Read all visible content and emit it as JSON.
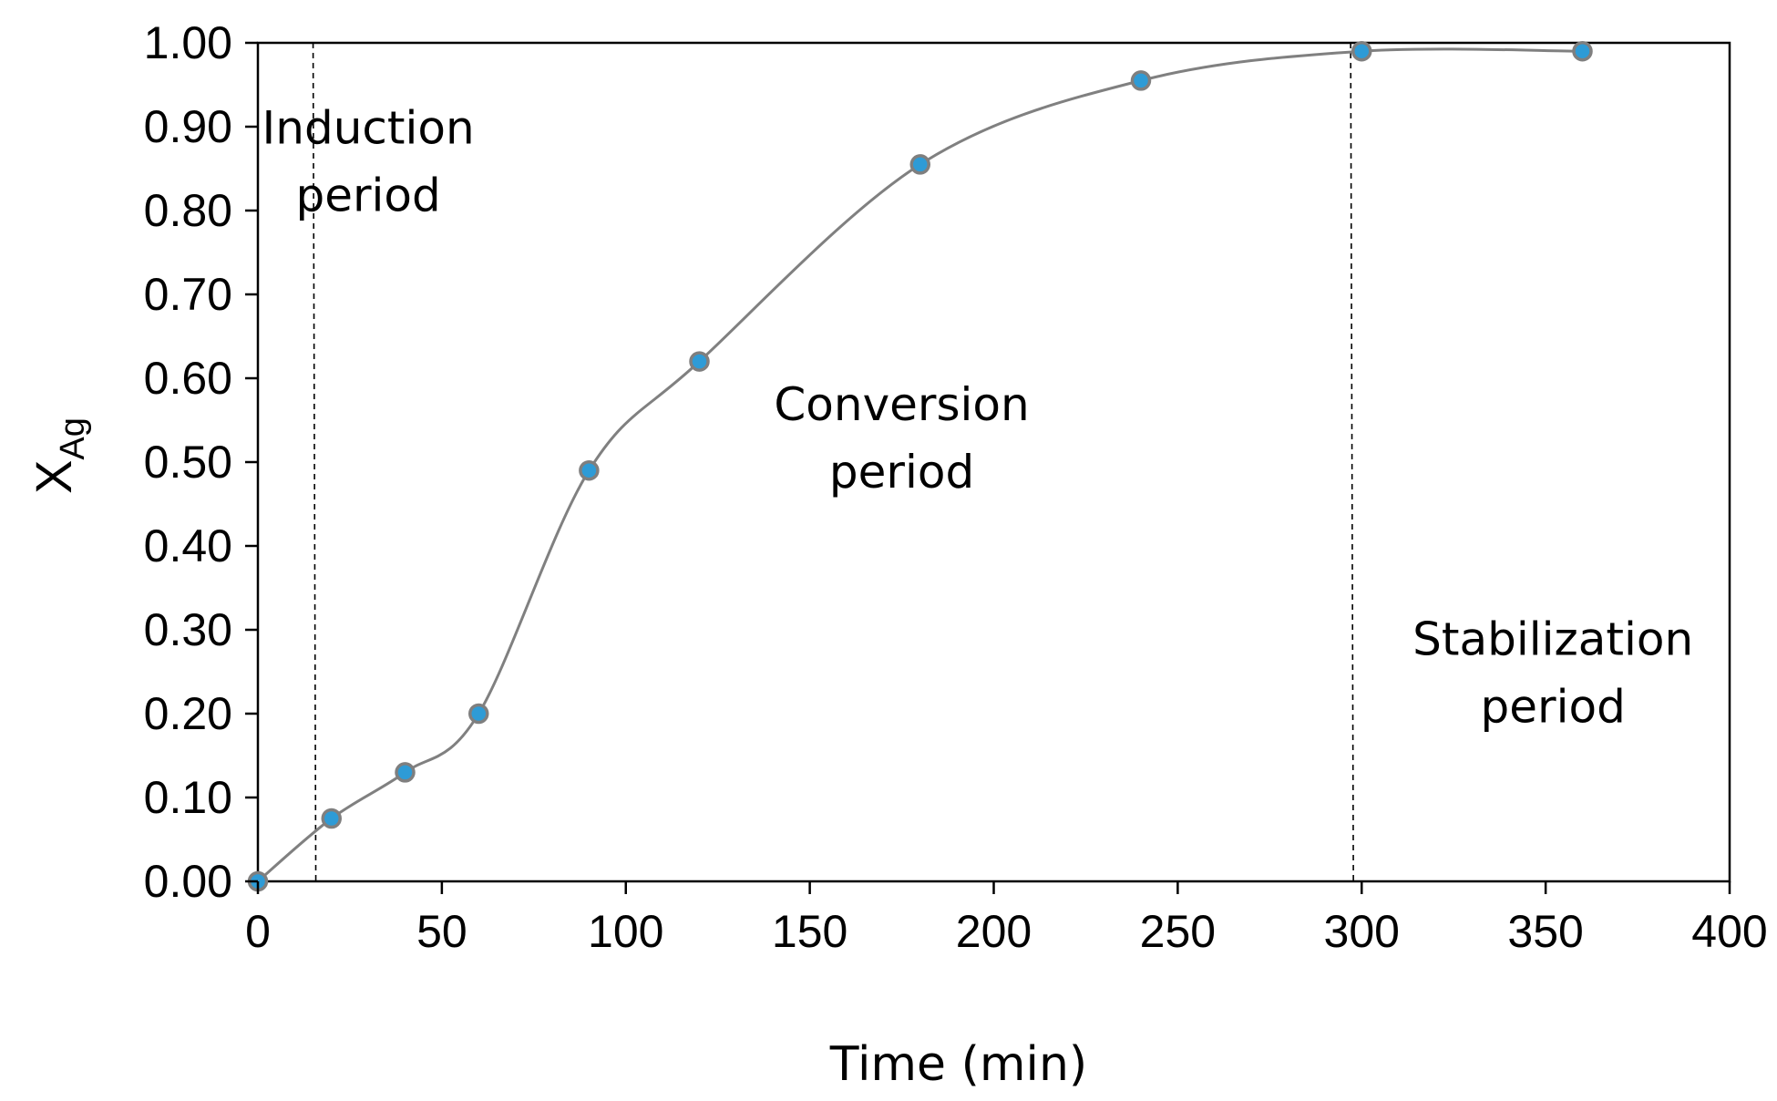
{
  "chart_data": {
    "type": "scatter",
    "title": "",
    "xlabel": "Time (min)",
    "ylabel": {
      "main": "X",
      "sub": "Ag"
    },
    "xlim": [
      0,
      400
    ],
    "ylim": [
      0,
      1.0
    ],
    "xticks": [
      "0",
      "50",
      "100",
      "150",
      "200",
      "250",
      "300",
      "350",
      "400"
    ],
    "yticks": [
      "0.00",
      "0.10",
      "0.20",
      "0.30",
      "0.40",
      "0.50",
      "0.60",
      "0.70",
      "0.80",
      "0.90",
      "1.00"
    ],
    "grid": false,
    "smooth_line": true,
    "series": [
      {
        "name": "XAg",
        "x": [
          0,
          20,
          40,
          60,
          90,
          120,
          180,
          240,
          300,
          360
        ],
        "y": [
          0.0,
          0.075,
          0.13,
          0.2,
          0.49,
          0.62,
          0.855,
          0.955,
          0.99,
          0.99
        ],
        "marker_color": "#2e9bd6",
        "marker_edge": "#7f7f7f",
        "line_color": "#808080"
      }
    ],
    "reference_lines": [
      {
        "x": 15,
        "style": "dashed"
      },
      {
        "x": 297,
        "style": "dashed"
      }
    ],
    "annotations": [
      {
        "lines": [
          "Induction",
          "period"
        ],
        "x": 30,
        "y": 0.88
      },
      {
        "lines": [
          "Conversion",
          "period"
        ],
        "x": 175,
        "y": 0.55
      },
      {
        "lines": [
          "Stabilization",
          "period"
        ],
        "x": 352,
        "y": 0.27
      }
    ]
  }
}
